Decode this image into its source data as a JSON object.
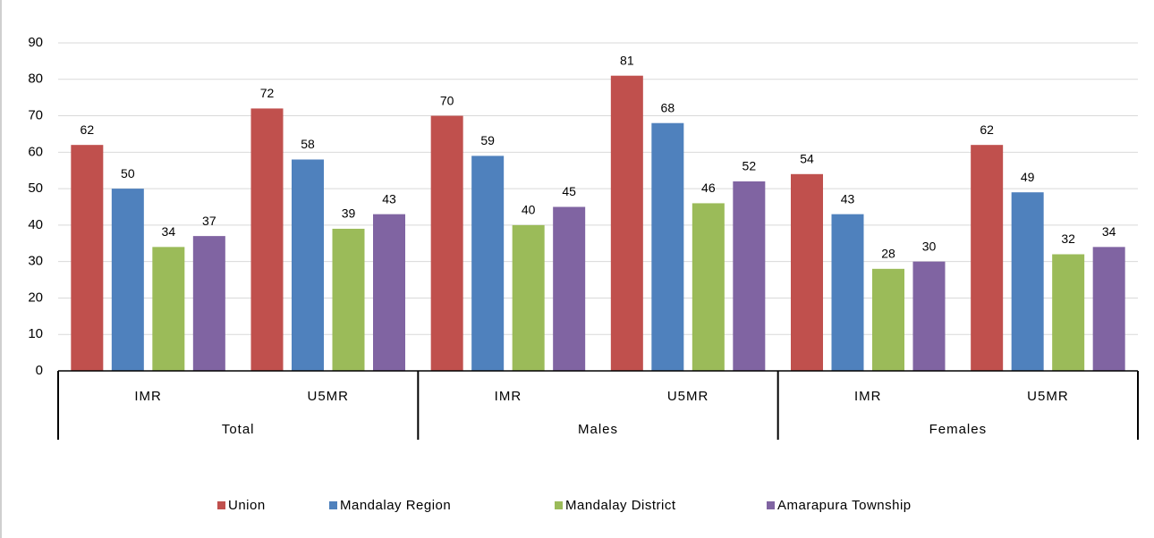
{
  "chart_data": {
    "type": "bar",
    "categories": [
      "IMR",
      "U5MR",
      "IMR",
      "U5MR",
      "IMR",
      "U5MR"
    ],
    "groups": [
      "Total",
      "Males",
      "Females"
    ],
    "series": [
      {
        "name": "Union",
        "color": "#c0504d",
        "values": [
          62,
          72,
          70,
          81,
          54,
          62
        ]
      },
      {
        "name": "Mandalay Region",
        "color": "#4f81bd",
        "values": [
          50,
          58,
          59,
          68,
          43,
          49
        ]
      },
      {
        "name": "Mandalay District",
        "color": "#9bbb59",
        "values": [
          34,
          39,
          40,
          46,
          28,
          32
        ]
      },
      {
        "name": "Amarapura Township",
        "color": "#8064a2",
        "values": [
          37,
          43,
          45,
          52,
          30,
          34
        ]
      }
    ],
    "ylim": [
      0,
      90
    ],
    "yticks": [
      0,
      10,
      20,
      30,
      40,
      50,
      60,
      70,
      80,
      90
    ],
    "grid": true,
    "legend": "bottom"
  }
}
